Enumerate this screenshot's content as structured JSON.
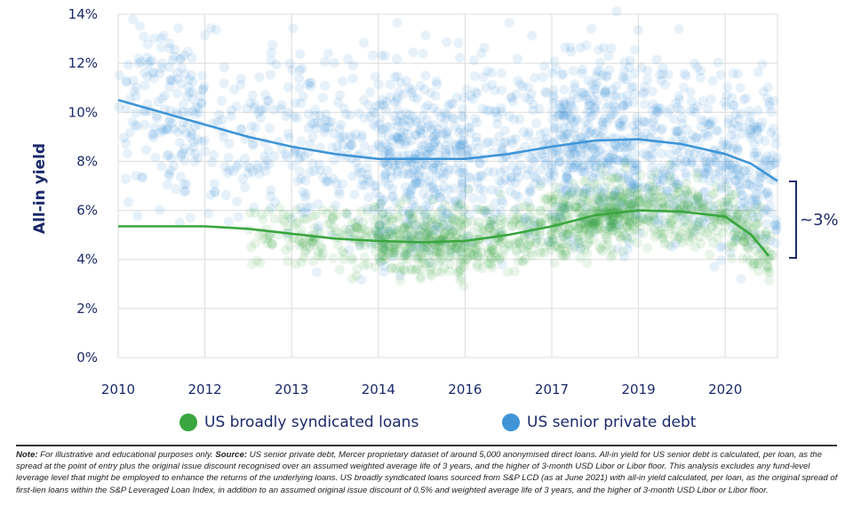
{
  "chart_data": {
    "type": "scatter",
    "title": "",
    "ylabel": "All-in yield",
    "xlabel": "",
    "ylim": [
      0,
      14
    ],
    "y_ticks": [
      "0%",
      "2%",
      "4%",
      "6%",
      "8%",
      "10%",
      "12%",
      "14%"
    ],
    "x_ticks": [
      "2010",
      "2012",
      "2013",
      "2014",
      "2016",
      "2017",
      "2019",
      "2020"
    ],
    "x_tick_values": [
      2010,
      2012,
      2013,
      2014,
      2016,
      2017,
      2019,
      2020
    ],
    "grid": true,
    "legend_placement": "bottom",
    "series": [
      {
        "name": "US broadly syndicated loans",
        "color": "#3aa63f",
        "trend": [
          [
            2010,
            5.35
          ],
          [
            2012,
            5.35
          ],
          [
            2012.5,
            5.25
          ],
          [
            2013,
            5.05
          ],
          [
            2013.5,
            4.85
          ],
          [
            2014,
            4.75
          ],
          [
            2015,
            4.7
          ],
          [
            2016,
            4.75
          ],
          [
            2016.5,
            5.0
          ],
          [
            2017,
            5.35
          ],
          [
            2018,
            5.8
          ],
          [
            2019,
            6.0
          ],
          [
            2019.5,
            5.95
          ],
          [
            2020,
            5.75
          ],
          [
            2020.3,
            5.0
          ],
          [
            2020.5,
            4.15
          ]
        ]
      },
      {
        "name": "US senior private debt",
        "color": "#3f95d8",
        "trend": [
          [
            2010,
            10.5
          ],
          [
            2011,
            10.0
          ],
          [
            2012,
            9.5
          ],
          [
            2012.5,
            9.0
          ],
          [
            2013,
            8.6
          ],
          [
            2013.5,
            8.3
          ],
          [
            2014,
            8.1
          ],
          [
            2015,
            8.1
          ],
          [
            2016,
            8.1
          ],
          [
            2016.5,
            8.3
          ],
          [
            2017,
            8.6
          ],
          [
            2018,
            8.85
          ],
          [
            2019,
            8.9
          ],
          [
            2019.5,
            8.7
          ],
          [
            2020,
            8.3
          ],
          [
            2020.3,
            7.9
          ],
          [
            2020.6,
            7.2
          ]
        ]
      }
    ],
    "annotation": "~3%"
  },
  "legend": {
    "bsl": "US broadly syndicated loans",
    "pd": "US senior private debt"
  },
  "note": {
    "note_label": "Note:",
    "note_text": " For illustrative and educational purposes only. ",
    "source_label": "Source:",
    "source_text": " US senior private debt, Mercer proprietary dataset of around 5,000 anonymised direct loans. All-in yield for US senior debt is calculated, per loan, as the spread at the point of entry plus the original issue discount recognised over an assumed weighted average life of 3 years, and the higher of 3-month USD Libor or Libor floor. This analysis excludes any fund-level leverage level that might be employed to enhance the returns of the underlying loans. US broadly syndicated loans sourced from S&P LCD (as at June 2021) with all-in yield calculated, per loan, as the original spread of first-lien loans within the S&P Leveraged Loan Index, in addition to an assumed original issue discount of 0.5% and weighted average life of 3 years, and the higher of 3-month USD Libor or Libor floor."
  }
}
